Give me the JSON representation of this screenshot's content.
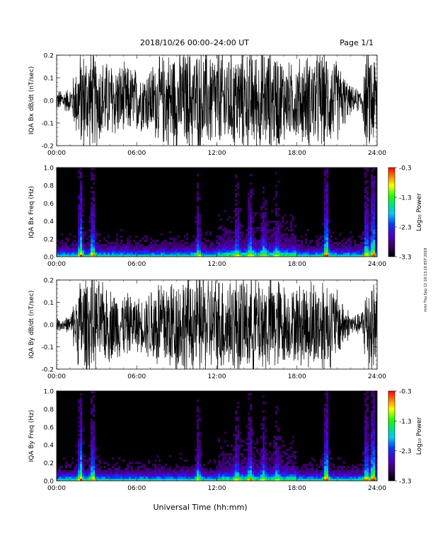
{
  "header": {
    "date_range": "2018/10/26   00:00–24:00 UT",
    "page": "Page 1/1"
  },
  "footer": {
    "xlabel": "Universal Time (hh:mm)"
  },
  "side_stamp": "mml Thu Sep 12 10:13:10 EST 2019",
  "chart_data": [
    {
      "type": "line",
      "ylabel": "IQA Bx dB/dt (nT/sec)",
      "ylim": [
        -0.2,
        0.2
      ],
      "yticks": [
        "0.2",
        "0.1",
        "0.0",
        "-0.1",
        "-0.2"
      ],
      "xlim": [
        0,
        24
      ],
      "xticks": [
        "00:00",
        "06:00",
        "12:00",
        "18:00",
        "24:00"
      ],
      "series": [
        {
          "color": "#000000",
          "envelope_hours": [
            0,
            1,
            1.8,
            2.5,
            3.5,
            5,
            6.5,
            7.5,
            8.5,
            9.5,
            10.5,
            11.5,
            12.5,
            14,
            15.5,
            16.5,
            17.5,
            18.5,
            20,
            21,
            22,
            22.8,
            23.2,
            24
          ],
          "envelope_amplitude": [
            0.05,
            0.06,
            0.25,
            0.25,
            0.2,
            0.18,
            0.15,
            0.2,
            0.25,
            0.25,
            0.25,
            0.25,
            0.25,
            0.25,
            0.25,
            0.25,
            0.18,
            0.22,
            0.25,
            0.2,
            0.07,
            0.05,
            0.25,
            0.25
          ]
        }
      ]
    },
    {
      "type": "heatmap",
      "ylabel": "IQA Bx Freq (Hz)",
      "ylim": [
        0,
        1.0
      ],
      "yticks": [
        "1.0",
        "0.8",
        "0.6",
        "0.4",
        "0.2",
        "0.0"
      ],
      "xlim": [
        0,
        24
      ],
      "xticks": [
        "00:00",
        "06:00",
        "12:00",
        "18:00",
        "24:00"
      ],
      "colorbar": {
        "label": "Log₁₀ Power",
        "range": [
          -3.3,
          -0.3
        ],
        "ticks": [
          "-0.3",
          "-1.3",
          "-2.3",
          "-3.3"
        ]
      }
    },
    {
      "type": "line",
      "ylabel": "IQA By dB/dt (nT/sec)",
      "ylim": [
        -0.2,
        0.2
      ],
      "yticks": [
        "0.2",
        "0.1",
        "0.0",
        "-0.1",
        "-0.2"
      ],
      "xlim": [
        0,
        24
      ],
      "xticks": [
        "00:00",
        "06:00",
        "12:00",
        "18:00",
        "24:00"
      ],
      "series": [
        {
          "color": "#000000",
          "envelope_hours": [
            0,
            1,
            1.8,
            2.5,
            3.5,
            5,
            6.5,
            7.5,
            8.5,
            9.5,
            10.5,
            11.5,
            12.5,
            14,
            15.5,
            16.5,
            17.5,
            18.5,
            20,
            21,
            22,
            22.8,
            23.2,
            24
          ],
          "envelope_amplitude": [
            0.03,
            0.04,
            0.25,
            0.25,
            0.2,
            0.16,
            0.13,
            0.25,
            0.25,
            0.25,
            0.25,
            0.25,
            0.25,
            0.25,
            0.25,
            0.25,
            0.17,
            0.22,
            0.25,
            0.18,
            0.06,
            0.05,
            0.25,
            0.25
          ]
        }
      ]
    },
    {
      "type": "heatmap",
      "ylabel": "IQA By Freq (Hz)",
      "ylim": [
        0,
        1.0
      ],
      "yticks": [
        "1.0",
        "0.8",
        "0.6",
        "0.4",
        "0.2",
        "0.0"
      ],
      "xlim": [
        0,
        24
      ],
      "xticks": [
        "00:00",
        "06:00",
        "12:00",
        "18:00",
        "24:00"
      ],
      "colorbar": {
        "label": "Log₁₀ Power",
        "range": [
          -3.3,
          -0.3
        ],
        "ticks": [
          "-0.3",
          "-1.3",
          "-2.3",
          "-3.3"
        ]
      }
    }
  ]
}
